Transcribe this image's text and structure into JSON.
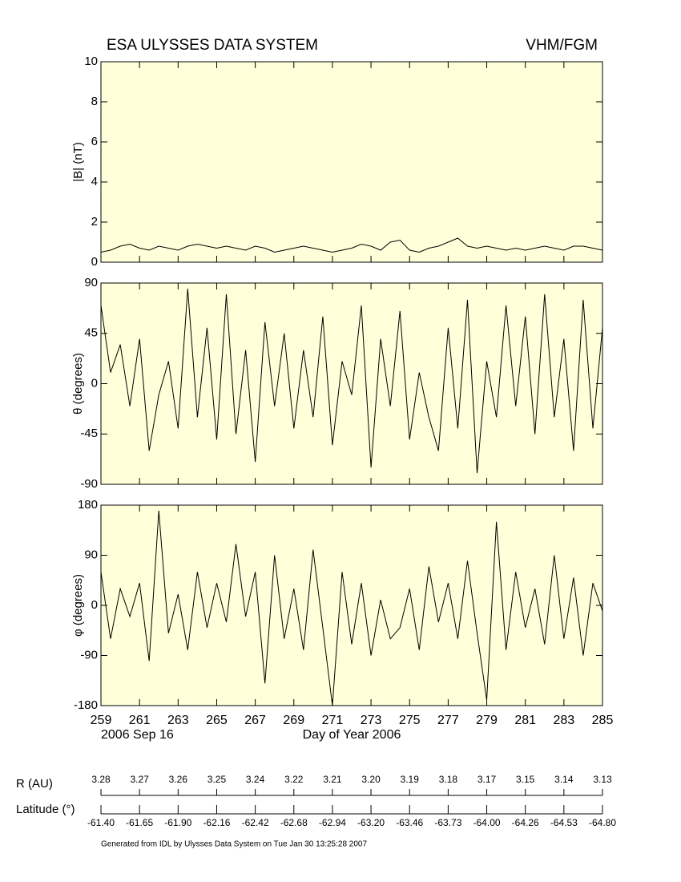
{
  "header": {
    "title": "ESA ULYSSES DATA SYSTEM",
    "instrument": "VHM/FGM"
  },
  "chart_data": [
    {
      "type": "line",
      "ylabel": "|B| (nT)",
      "color": "#000000",
      "x": [
        259,
        259.5,
        260,
        260.5,
        261,
        261.5,
        262,
        262.5,
        263,
        263.5,
        264,
        264.5,
        265,
        265.5,
        266,
        266.5,
        267,
        267.5,
        268,
        268.5,
        269,
        269.5,
        270,
        270.5,
        271,
        271.5,
        272,
        272.5,
        273,
        273.5,
        274,
        274.5,
        275,
        275.5,
        276,
        276.5,
        277,
        277.5,
        278,
        278.5,
        279,
        279.5,
        280,
        280.5,
        281,
        281.5,
        282,
        282.5,
        283,
        283.5,
        284,
        284.5,
        285
      ],
      "values": [
        0.5,
        0.6,
        0.8,
        0.9,
        0.7,
        0.6,
        0.8,
        0.7,
        0.6,
        0.8,
        0.9,
        0.8,
        0.7,
        0.8,
        0.7,
        0.6,
        0.8,
        0.7,
        0.5,
        0.6,
        0.7,
        0.8,
        0.7,
        0.6,
        0.5,
        0.6,
        0.7,
        0.9,
        0.8,
        0.6,
        1.0,
        1.1,
        0.6,
        0.5,
        0.7,
        0.8,
        1.0,
        1.2,
        0.8,
        0.7,
        0.8,
        0.7,
        0.6,
        0.7,
        0.6,
        0.7,
        0.8,
        0.7,
        0.6,
        0.8,
        0.8,
        0.7,
        0.6
      ],
      "xlim": [
        259,
        285
      ],
      "xticks": [
        259,
        261,
        263,
        265,
        267,
        269,
        271,
        273,
        275,
        277,
        279,
        281,
        283,
        285
      ],
      "ylim": [
        0,
        10
      ],
      "yticks": [
        0,
        2,
        4,
        6,
        8,
        10
      ]
    },
    {
      "type": "line",
      "ylabel": "θ (degrees)",
      "color": "#000000",
      "x": [
        259,
        259.5,
        260,
        260.5,
        261,
        261.5,
        262,
        262.5,
        263,
        263.5,
        264,
        264.5,
        265,
        265.5,
        266,
        266.5,
        267,
        267.5,
        268,
        268.5,
        269,
        269.5,
        270,
        270.5,
        271,
        271.5,
        272,
        272.5,
        273,
        273.5,
        274,
        274.5,
        275,
        275.5,
        276,
        276.5,
        277,
        277.5,
        278,
        278.5,
        279,
        279.5,
        280,
        280.5,
        281,
        281.5,
        282,
        282.5,
        283,
        283.5,
        284,
        284.5,
        285
      ],
      "values": [
        70,
        10,
        35,
        -20,
        40,
        -60,
        -10,
        20,
        -40,
        85,
        -30,
        50,
        -50,
        80,
        -45,
        30,
        -70,
        55,
        -20,
        45,
        -40,
        30,
        -30,
        60,
        -55,
        20,
        -10,
        70,
        -75,
        40,
        -20,
        65,
        -50,
        10,
        -30,
        -60,
        50,
        -40,
        75,
        -80,
        20,
        -30,
        70,
        -20,
        60,
        -45,
        80,
        -30,
        40,
        -60,
        75,
        -40,
        50
      ],
      "xlim": [
        259,
        285
      ],
      "xticks": [
        259,
        261,
        263,
        265,
        267,
        269,
        271,
        273,
        275,
        277,
        279,
        281,
        283,
        285
      ],
      "ylim": [
        -90,
        90
      ],
      "yticks": [
        -90,
        -45,
        0,
        45,
        90
      ]
    },
    {
      "type": "line",
      "ylabel": "φ (degrees)",
      "color": "#000000",
      "x": [
        259,
        259.5,
        260,
        260.5,
        261,
        261.5,
        262,
        262.5,
        263,
        263.5,
        264,
        264.5,
        265,
        265.5,
        266,
        266.5,
        267,
        267.5,
        268,
        268.5,
        269,
        269.5,
        270,
        270.5,
        271,
        271.5,
        272,
        272.5,
        273,
        273.5,
        274,
        274.5,
        275,
        275.5,
        276,
        276.5,
        277,
        277.5,
        278,
        278.5,
        279,
        279.5,
        280,
        280.5,
        281,
        281.5,
        282,
        282.5,
        283,
        283.5,
        284,
        284.5,
        285
      ],
      "values": [
        60,
        -60,
        30,
        -20,
        40,
        -100,
        170,
        -50,
        20,
        -80,
        60,
        -40,
        40,
        -30,
        110,
        -20,
        60,
        -140,
        90,
        -60,
        30,
        -80,
        100,
        -40,
        -180,
        60,
        -70,
        40,
        -90,
        10,
        -60,
        -40,
        30,
        -80,
        70,
        -30,
        40,
        -60,
        80,
        -50,
        -170,
        150,
        -80,
        60,
        -40,
        30,
        -70,
        90,
        -60,
        50,
        -90,
        40,
        -10
      ],
      "xlim": [
        259,
        285
      ],
      "xticks": [
        259,
        261,
        263,
        265,
        267,
        269,
        271,
        273,
        275,
        277,
        279,
        281,
        283,
        285
      ],
      "ylim": [
        -180,
        180
      ],
      "yticks": [
        -180,
        -90,
        0,
        90,
        180
      ],
      "xlabel": "Day of Year 2006",
      "start_date": "2006 Sep 16"
    }
  ],
  "orbit": {
    "r_label": "R (AU)",
    "r_values": [
      3.28,
      3.27,
      3.26,
      3.25,
      3.24,
      3.22,
      3.21,
      {
        "value": 3.2,
        "label": "3.20"
      },
      3.19,
      3.18,
      3.17,
      3.15,
      3.14,
      3.13
    ],
    "lat_label": "Latitude (°)",
    "lat_values": [
      {
        "value": -61.4,
        "label": "-61.40"
      },
      -61.65,
      {
        "value": -61.9,
        "label": "-61.90"
      },
      -62.16,
      -62.42,
      -62.68,
      -62.94,
      {
        "value": -63.2,
        "label": "-63.20"
      },
      -63.46,
      -63.73,
      {
        "value": -64,
        "label": "-64.00"
      },
      -64.26,
      -64.53,
      {
        "value": -64.8,
        "label": "-64.80"
      }
    ]
  },
  "footer": "Generated from IDL by Ulysses Data System on Tue Jan 30 13:25:28 2007"
}
